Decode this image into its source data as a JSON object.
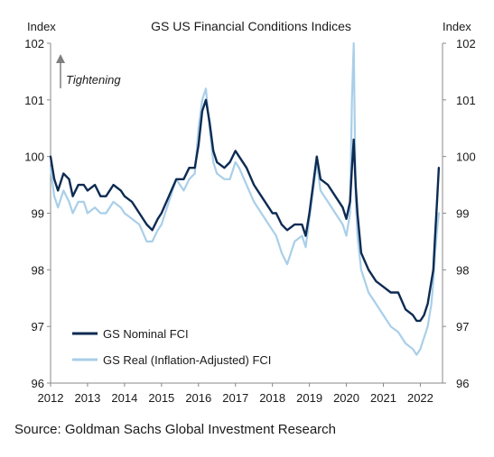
{
  "chart_data": {
    "type": "line",
    "title": "GS US Financial Conditions Indices",
    "ylabel_left": "Index",
    "ylabel_right": "Index",
    "annotation": "Tightening",
    "xlim": [
      2012.0,
      2022.6
    ],
    "ylim": [
      96,
      102
    ],
    "x_ticks": [
      "2012",
      "2013",
      "2014",
      "2015",
      "2016",
      "2017",
      "2018",
      "2019",
      "2020",
      "2021",
      "2022"
    ],
    "y_ticks": [
      "96",
      "97",
      "98",
      "99",
      "100",
      "101",
      "102"
    ],
    "grid": false,
    "legend_position": "bottom-left",
    "series": [
      {
        "name": "GS Nominal FCI",
        "color": "#0d2b52",
        "x": [
          2012.0,
          2012.1,
          2012.2,
          2012.35,
          2012.5,
          2012.6,
          2012.75,
          2012.9,
          2013.0,
          2013.2,
          2013.35,
          2013.5,
          2013.7,
          2013.9,
          2014.0,
          2014.2,
          2014.4,
          2014.6,
          2014.75,
          2014.9,
          2015.0,
          2015.2,
          2015.4,
          2015.6,
          2015.75,
          2015.9,
          2016.0,
          2016.1,
          2016.2,
          2016.3,
          2016.4,
          2016.5,
          2016.7,
          2016.85,
          2017.0,
          2017.1,
          2017.3,
          2017.5,
          2017.7,
          2017.9,
          2018.0,
          2018.1,
          2018.25,
          2018.4,
          2018.6,
          2018.8,
          2018.9,
          2019.0,
          2019.1,
          2019.2,
          2019.3,
          2019.5,
          2019.7,
          2019.9,
          2020.0,
          2020.1,
          2020.15,
          2020.2,
          2020.25,
          2020.3,
          2020.4,
          2020.6,
          2020.8,
          2021.0,
          2021.2,
          2021.4,
          2021.6,
          2021.8,
          2021.9,
          2022.0,
          2022.1,
          2022.2,
          2022.3,
          2022.35,
          2022.4,
          2022.45,
          2022.5
        ],
        "values": [
          100.0,
          99.6,
          99.4,
          99.7,
          99.6,
          99.3,
          99.5,
          99.5,
          99.4,
          99.5,
          99.3,
          99.3,
          99.5,
          99.4,
          99.3,
          99.2,
          99.0,
          98.8,
          98.7,
          98.9,
          99.0,
          99.3,
          99.6,
          99.6,
          99.8,
          99.8,
          100.2,
          100.8,
          101.0,
          100.6,
          100.1,
          99.9,
          99.8,
          99.9,
          100.1,
          100.0,
          99.8,
          99.5,
          99.3,
          99.1,
          99.0,
          99.0,
          98.8,
          98.7,
          98.8,
          98.8,
          98.6,
          99.0,
          99.5,
          100.0,
          99.6,
          99.5,
          99.3,
          99.1,
          98.9,
          99.2,
          99.8,
          100.3,
          99.5,
          99.0,
          98.3,
          98.0,
          97.8,
          97.7,
          97.6,
          97.6,
          97.3,
          97.2,
          97.1,
          97.1,
          97.2,
          97.4,
          97.8,
          98.0,
          98.6,
          99.2,
          99.8
        ]
      },
      {
        "name": "GS Real (Inflation-Adjusted) FCI",
        "color": "#a9cfe9",
        "x": [
          2012.0,
          2012.1,
          2012.2,
          2012.35,
          2012.5,
          2012.6,
          2012.75,
          2012.9,
          2013.0,
          2013.2,
          2013.35,
          2013.5,
          2013.7,
          2013.9,
          2014.0,
          2014.2,
          2014.4,
          2014.6,
          2014.75,
          2014.9,
          2015.0,
          2015.2,
          2015.4,
          2015.6,
          2015.75,
          2015.9,
          2016.0,
          2016.1,
          2016.2,
          2016.3,
          2016.4,
          2016.5,
          2016.7,
          2016.85,
          2017.0,
          2017.1,
          2017.3,
          2017.5,
          2017.7,
          2017.9,
          2018.0,
          2018.1,
          2018.25,
          2018.4,
          2018.6,
          2018.8,
          2018.9,
          2019.0,
          2019.1,
          2019.2,
          2019.3,
          2019.5,
          2019.7,
          2019.9,
          2020.0,
          2020.1,
          2020.15,
          2020.2,
          2020.25,
          2020.3,
          2020.4,
          2020.6,
          2020.8,
          2021.0,
          2021.2,
          2021.4,
          2021.6,
          2021.8,
          2021.9,
          2022.0,
          2022.1,
          2022.2,
          2022.3,
          2022.35,
          2022.4,
          2022.45,
          2022.5
        ],
        "values": [
          99.8,
          99.3,
          99.1,
          99.4,
          99.2,
          99.0,
          99.2,
          99.2,
          99.0,
          99.1,
          99.0,
          99.0,
          99.2,
          99.1,
          99.0,
          98.9,
          98.8,
          98.5,
          98.5,
          98.7,
          98.8,
          99.2,
          99.6,
          99.4,
          99.6,
          99.7,
          100.5,
          101.0,
          101.2,
          100.5,
          99.9,
          99.7,
          99.6,
          99.6,
          99.9,
          99.8,
          99.5,
          99.2,
          99.0,
          98.8,
          98.7,
          98.6,
          98.3,
          98.1,
          98.5,
          98.6,
          98.4,
          98.9,
          99.4,
          99.9,
          99.4,
          99.2,
          99.0,
          98.8,
          98.6,
          99.0,
          101.0,
          102.0,
          99.3,
          98.6,
          98.0,
          97.6,
          97.4,
          97.2,
          97.0,
          96.9,
          96.7,
          96.6,
          96.5,
          96.6,
          96.8,
          97.0,
          97.4,
          97.8,
          98.3,
          98.7,
          99.0
        ]
      }
    ]
  },
  "source_note": "Source: Goldman Sachs Global Investment Research"
}
